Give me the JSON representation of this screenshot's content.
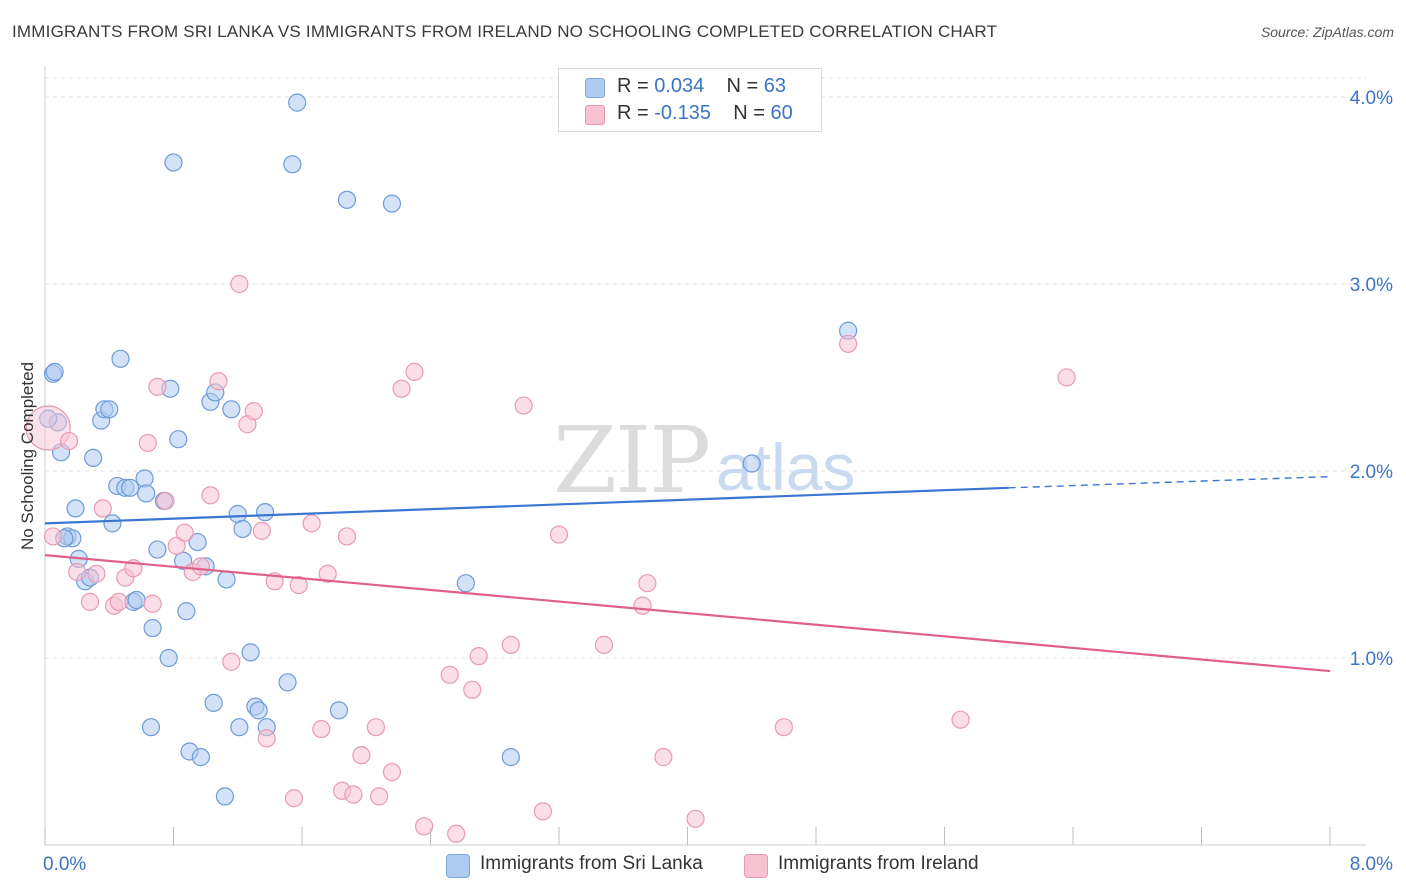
{
  "header": {
    "title": "IMMIGRANTS FROM SRI LANKA VS IMMIGRANTS FROM IRELAND NO SCHOOLING COMPLETED CORRELATION CHART",
    "source": "Source: ZipAtlas.com"
  },
  "legend": {
    "series": [
      {
        "swatch_color": "#aecbf0",
        "swatch_border": "#7ea6dd",
        "r_label": "R = ",
        "r_value": "0.034",
        "n_label": "N = ",
        "n_value": "63"
      },
      {
        "swatch_color": "#f7c3d3",
        "swatch_border": "#ea97b2",
        "r_label": "R = ",
        "r_value": "-0.135",
        "n_label": "N = ",
        "n_value": "60"
      }
    ]
  },
  "bottom_legend": [
    {
      "label": "Immigrants from Sri Lanka",
      "color": "#aecbf0"
    },
    {
      "label": "Immigrants from Ireland",
      "color": "#f7c3d3"
    }
  ],
  "watermark": {
    "zip": "ZIP",
    "atlas": "atlas"
  },
  "chart_data": {
    "type": "scatter",
    "title": "IMMIGRANTS FROM SRI LANKA VS IMMIGRANTS FROM IRELAND NO SCHOOLING COMPLETED CORRELATION CHART",
    "xlabel": "",
    "ylabel": "No Schooling Completed",
    "xlim": [
      0,
      8
    ],
    "ylim": [
      0,
      4
    ],
    "x_tick_labels": [
      {
        "value": 0,
        "label": "0.0%"
      },
      {
        "value": 8,
        "label": "8.0%"
      }
    ],
    "y_tick_labels": [
      {
        "value": 1,
        "label": "1.0%"
      },
      {
        "value": 2,
        "label": "2.0%"
      },
      {
        "value": 3,
        "label": "3.0%"
      },
      {
        "value": 4,
        "label": "4.0%"
      }
    ],
    "grid": true,
    "series": [
      {
        "name": "Immigrants from Sri Lanka",
        "color": "#3a76d2",
        "fill": "#aecbf0",
        "trend": {
          "x0": 0,
          "y0": 1.72,
          "x1": 6.0,
          "y1": 1.91,
          "dash_x1": 8.0,
          "dash_y1": 1.97
        },
        "points": [
          [
            0.05,
            2.52
          ],
          [
            0.08,
            2.26
          ],
          [
            0.1,
            2.1
          ],
          [
            0.14,
            1.65
          ],
          [
            0.17,
            1.64
          ],
          [
            0.19,
            1.8
          ],
          [
            0.21,
            1.53
          ],
          [
            0.25,
            1.41
          ],
          [
            0.28,
            1.43
          ],
          [
            0.3,
            2.07
          ],
          [
            0.35,
            2.27
          ],
          [
            0.37,
            2.33
          ],
          [
            0.4,
            2.33
          ],
          [
            0.42,
            1.72
          ],
          [
            0.45,
            1.92
          ],
          [
            0.47,
            2.6
          ],
          [
            0.5,
            1.91
          ],
          [
            0.53,
            1.91
          ],
          [
            0.55,
            1.3
          ],
          [
            0.57,
            1.31
          ],
          [
            0.62,
            1.96
          ],
          [
            0.63,
            1.88
          ],
          [
            0.66,
            0.63
          ],
          [
            0.67,
            1.16
          ],
          [
            0.7,
            1.58
          ],
          [
            0.74,
            1.84
          ],
          [
            0.77,
            1.0
          ],
          [
            0.78,
            2.44
          ],
          [
            0.8,
            3.65
          ],
          [
            0.83,
            2.17
          ],
          [
            0.86,
            1.52
          ],
          [
            0.88,
            1.25
          ],
          [
            0.9,
            0.5
          ],
          [
            0.95,
            1.62
          ],
          [
            0.97,
            0.47
          ],
          [
            1.0,
            1.49
          ],
          [
            1.03,
            2.37
          ],
          [
            1.05,
            0.76
          ],
          [
            1.06,
            2.42
          ],
          [
            1.12,
            0.26
          ],
          [
            1.13,
            1.42
          ],
          [
            1.16,
            2.33
          ],
          [
            1.2,
            1.77
          ],
          [
            1.21,
            0.63
          ],
          [
            1.23,
            1.69
          ],
          [
            1.28,
            1.03
          ],
          [
            1.31,
            0.74
          ],
          [
            1.33,
            0.72
          ],
          [
            1.38,
            0.63
          ],
          [
            1.37,
            1.78
          ],
          [
            1.51,
            0.87
          ],
          [
            1.54,
            3.64
          ],
          [
            1.57,
            3.97
          ],
          [
            1.83,
            0.72
          ],
          [
            1.88,
            3.45
          ],
          [
            2.16,
            3.43
          ],
          [
            2.62,
            1.4
          ],
          [
            2.9,
            0.47
          ],
          [
            4.4,
            2.04
          ],
          [
            5.0,
            2.75
          ],
          [
            0.02,
            2.28
          ],
          [
            0.06,
            2.53
          ],
          [
            0.12,
            1.64
          ]
        ]
      },
      {
        "name": "Immigrants from Ireland",
        "color": "#e0608c",
        "fill": "#f7c3d3",
        "trend": {
          "x0": 0,
          "y0": 1.55,
          "x1": 8.0,
          "y1": 0.93
        },
        "points": [
          [
            0.02,
            2.23
          ],
          [
            0.05,
            1.65
          ],
          [
            0.15,
            2.16
          ],
          [
            0.2,
            1.46
          ],
          [
            0.28,
            1.3
          ],
          [
            0.32,
            1.45
          ],
          [
            0.36,
            1.8
          ],
          [
            0.43,
            1.28
          ],
          [
            0.46,
            1.3
          ],
          [
            0.5,
            1.43
          ],
          [
            0.55,
            1.48
          ],
          [
            0.64,
            2.15
          ],
          [
            0.67,
            1.29
          ],
          [
            0.7,
            2.45
          ],
          [
            0.75,
            1.84
          ],
          [
            0.82,
            1.6
          ],
          [
            0.87,
            1.67
          ],
          [
            0.92,
            1.46
          ],
          [
            0.97,
            1.49
          ],
          [
            1.03,
            1.87
          ],
          [
            1.08,
            2.48
          ],
          [
            1.16,
            0.98
          ],
          [
            1.21,
            3.0
          ],
          [
            1.26,
            2.25
          ],
          [
            1.3,
            2.32
          ],
          [
            1.35,
            1.68
          ],
          [
            1.38,
            0.57
          ],
          [
            1.43,
            1.41
          ],
          [
            1.55,
            0.25
          ],
          [
            1.58,
            1.39
          ],
          [
            1.66,
            1.72
          ],
          [
            1.72,
            0.62
          ],
          [
            1.76,
            1.45
          ],
          [
            1.85,
            0.29
          ],
          [
            1.88,
            1.65
          ],
          [
            1.92,
            0.27
          ],
          [
            1.97,
            0.48
          ],
          [
            2.06,
            0.63
          ],
          [
            2.08,
            0.26
          ],
          [
            2.16,
            0.39
          ],
          [
            2.22,
            2.44
          ],
          [
            2.3,
            2.53
          ],
          [
            2.36,
            0.1
          ],
          [
            2.52,
            0.91
          ],
          [
            2.56,
            0.06
          ],
          [
            2.66,
            0.83
          ],
          [
            2.7,
            1.01
          ],
          [
            2.9,
            1.07
          ],
          [
            2.98,
            2.35
          ],
          [
            3.1,
            0.18
          ],
          [
            3.2,
            1.66
          ],
          [
            3.48,
            1.07
          ],
          [
            3.72,
            1.28
          ],
          [
            3.75,
            1.4
          ],
          [
            3.85,
            0.47
          ],
          [
            4.05,
            0.14
          ],
          [
            4.6,
            0.63
          ],
          [
            5.0,
            2.68
          ],
          [
            5.7,
            0.67
          ],
          [
            6.36,
            2.5
          ]
        ]
      }
    ]
  }
}
